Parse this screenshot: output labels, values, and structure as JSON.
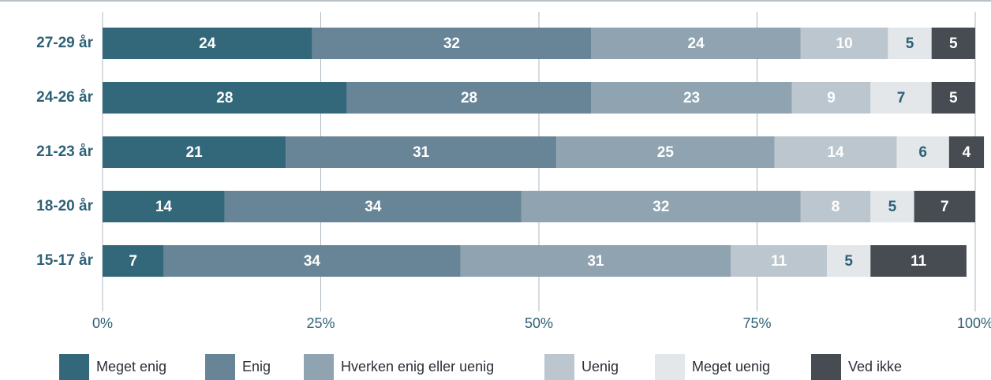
{
  "chart_data": {
    "type": "bar",
    "orientation": "horizontal",
    "stacked": true,
    "categories": [
      "27-29 år",
      "24-26 år",
      "21-23 år",
      "18-20 år",
      "15-17 år"
    ],
    "series": [
      {
        "name": "Meget enig",
        "color": "#33687a",
        "label_color": "#ffffff",
        "values": [
          24,
          28,
          21,
          14,
          7
        ]
      },
      {
        "name": "Enig",
        "color": "#678596",
        "label_color": "#ffffff",
        "values": [
          32,
          28,
          31,
          34,
          34
        ]
      },
      {
        "name": "Hverken enig eller uenig",
        "color": "#8fa3b0",
        "label_color": "#ffffff",
        "values": [
          24,
          23,
          25,
          32,
          31
        ]
      },
      {
        "name": "Uenig",
        "color": "#bcc6ce",
        "label_color": "#ffffff",
        "values": [
          10,
          9,
          14,
          8,
          11
        ]
      },
      {
        "name": "Meget uenig",
        "color": "#e3e7ea",
        "label_color": "#2e6176",
        "values": [
          5,
          7,
          6,
          5,
          5
        ]
      },
      {
        "name": "Ved ikke",
        "color": "#474b52",
        "label_color": "#ffffff",
        "values": [
          5,
          5,
          4,
          7,
          11
        ]
      }
    ],
    "xlim": [
      0,
      100
    ],
    "xticks": [
      {
        "value": 0,
        "label": "0%"
      },
      {
        "value": 25,
        "label": "25%"
      },
      {
        "value": 50,
        "label": "50%"
      },
      {
        "value": 75,
        "label": "75%"
      },
      {
        "value": 100,
        "label": "100%"
      }
    ],
    "grid": true,
    "legend": "bottom"
  }
}
